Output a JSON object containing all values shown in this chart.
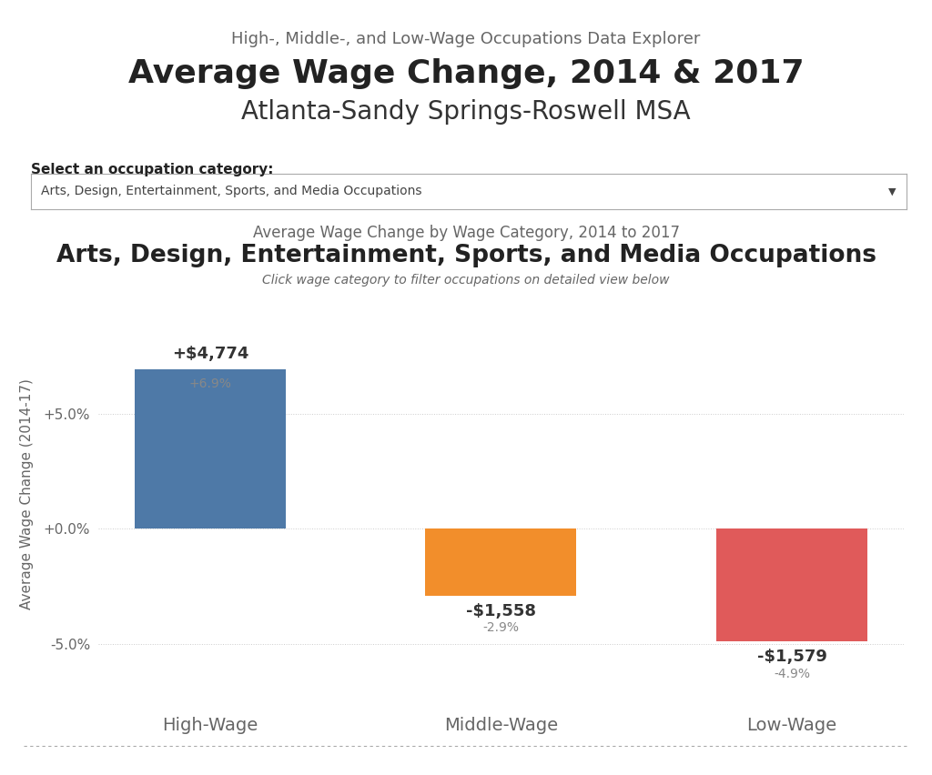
{
  "supertitle": "High-, Middle-, and Low-Wage Occupations Data Explorer",
  "title": "Average Wage Change, 2014 & 2017",
  "subtitle": "Atlanta-Sandy Springs-Roswell MSA",
  "dropdown_label": "Select an occupation category:",
  "dropdown_value": "Arts, Design, Entertainment, Sports, and Media Occupations",
  "chart_supertitle": "Average Wage Change by Wage Category, 2014 to 2017",
  "chart_title": "Arts, Design, Entertainment, Sports, and Media Occupations",
  "chart_subtitle": "Click wage category to filter occupations on detailed view below",
  "categories": [
    "High-Wage",
    "Middle-Wage",
    "Low-Wage"
  ],
  "values_pct": [
    6.9,
    -2.9,
    -4.9
  ],
  "dollar_labels": [
    "+$4,774",
    "-$1,558",
    "-$1,579"
  ],
  "pct_labels": [
    "+6.9%",
    "-2.9%",
    "-4.9%"
  ],
  "bar_colors": [
    "#4e79a7",
    "#f28e2b",
    "#e05a5a"
  ],
  "ylabel": "Average Wage Change (2014-17)",
  "ylim": [
    -7.5,
    10.5
  ],
  "yticks": [
    -5.0,
    0.0,
    5.0
  ],
  "ytick_labels": [
    "-5.0%",
    "+0.0%",
    "+5.0%"
  ],
  "background_color": "#ffffff",
  "grid_color": "#cccccc",
  "text_color": "#666666",
  "bar_label_color_dollar": "#333333",
  "bar_label_color_pct": "#888888",
  "title_fontsize": 26,
  "supertitle_fontsize": 13,
  "subtitle_fontsize": 20,
  "chart_title_fontsize": 19,
  "chart_supertitle_fontsize": 12,
  "chart_subtitle_fontsize": 10,
  "xlabel_fontsize": 14,
  "ylabel_fontsize": 11,
  "tick_label_fontsize": 11,
  "bar_width": 0.52
}
